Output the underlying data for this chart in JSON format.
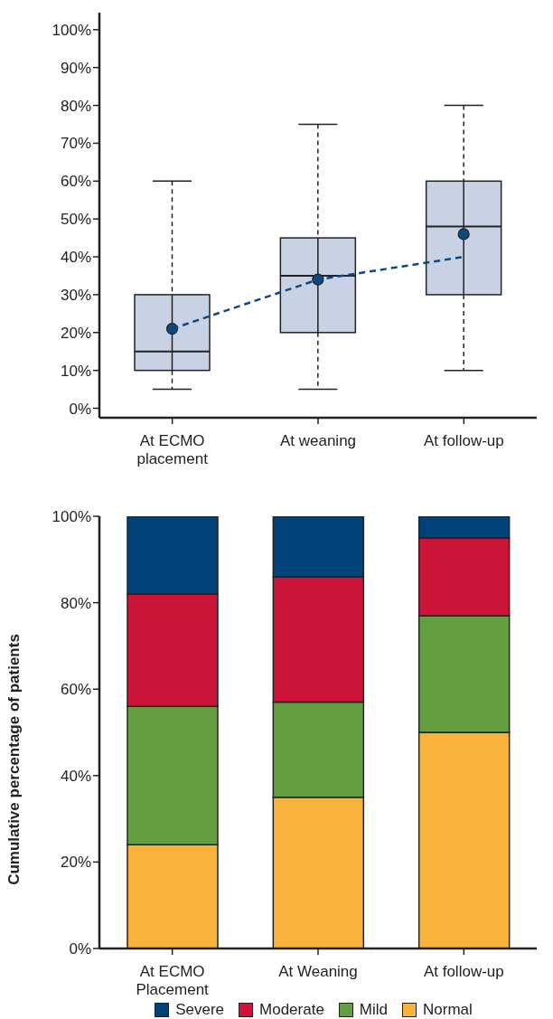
{
  "chart_data": [
    {
      "type": "box",
      "categories": [
        "At ECMO placement",
        "At weaning",
        "At follow-up"
      ],
      "series": [
        {
          "type": "box",
          "color": "#c9d2e4",
          "boxes": [
            {
              "low": 5,
              "q1": 10,
              "median": 15,
              "q3": 30,
              "high": 60,
              "mean": 21
            },
            {
              "low": 5,
              "q1": 20,
              "median": 35,
              "q3": 45,
              "high": 75,
              "mean": 34
            },
            {
              "low": 10,
              "q1": 30,
              "median": 48,
              "q3": 60,
              "high": 80,
              "mean": 46
            }
          ]
        },
        {
          "type": "line",
          "color": "#0b4a80",
          "values": [
            21,
            34,
            40
          ],
          "line_style": "dashed",
          "marker": "none"
        }
      ],
      "ylim": [
        -2.5,
        104.5
      ],
      "yticks": [
        {
          "value": 0,
          "label": "0%"
        },
        {
          "value": 10,
          "label": "10%"
        },
        {
          "value": 20,
          "label": "20%"
        },
        {
          "value": 30,
          "label": "30%"
        },
        {
          "value": 40,
          "label": "40%"
        },
        {
          "value": 50,
          "label": "50%"
        },
        {
          "value": 60,
          "label": "60%"
        },
        {
          "value": 70,
          "label": "70%"
        },
        {
          "value": 80,
          "label": "80%"
        },
        {
          "value": 90,
          "label": "90%"
        },
        {
          "value": 100,
          "label": "100%"
        }
      ]
    },
    {
      "type": "bar",
      "stacked": true,
      "categories": [
        "At ECMO Placement",
        "At Weaning",
        "At follow-up"
      ],
      "ylabel": "Cumulative percentage of patients",
      "series": [
        {
          "name": "Normal",
          "color": "#f9b33a",
          "values": [
            24,
            35,
            50
          ]
        },
        {
          "name": "Mild",
          "color": "#659d41",
          "values": [
            32,
            22,
            27
          ]
        },
        {
          "name": "Moderate",
          "color": "#cc1439",
          "values": [
            26,
            29,
            18
          ]
        },
        {
          "name": "Severe",
          "color": "#00427a",
          "values": [
            18,
            14,
            5
          ]
        }
      ],
      "ylim": [
        0,
        100
      ],
      "yticks": [
        {
          "value": 0,
          "label": "0%"
        },
        {
          "value": 20,
          "label": "20%"
        },
        {
          "value": 40,
          "label": "40%"
        },
        {
          "value": 60,
          "label": "60%"
        },
        {
          "value": 80,
          "label": "80%"
        },
        {
          "value": 100,
          "label": "100%"
        }
      ],
      "legend": "bottom"
    }
  ]
}
